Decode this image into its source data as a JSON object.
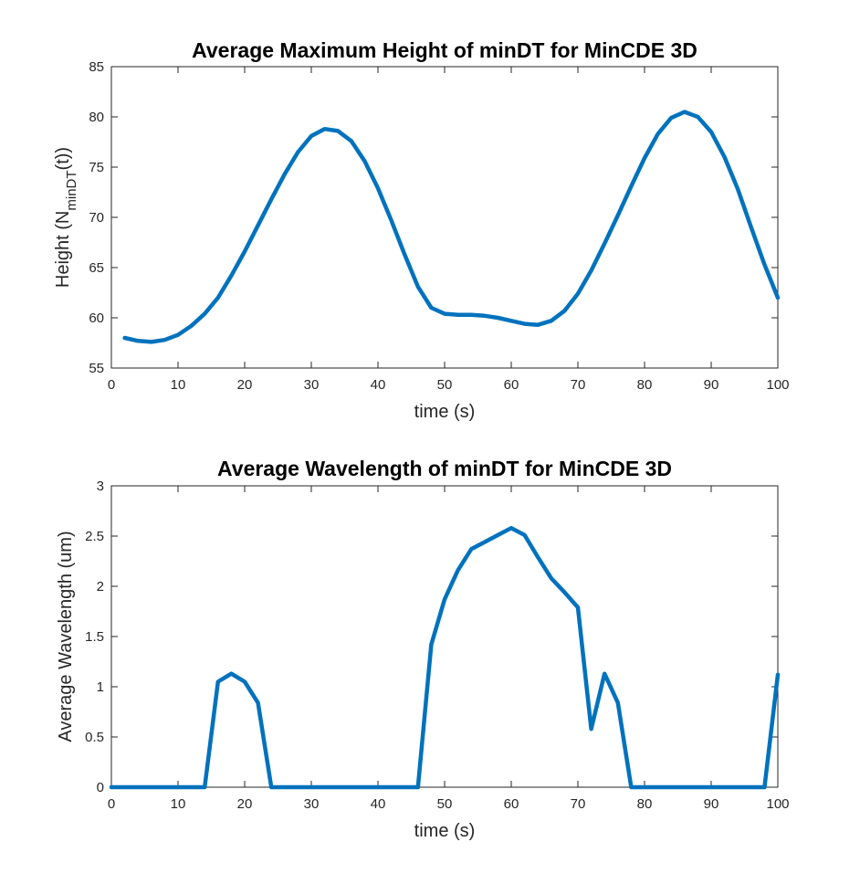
{
  "chart_data": [
    {
      "type": "line",
      "title": "Average Maximum Height of minDT for MinCDE 3D",
      "xlabel": "time (s)",
      "ylabel": {
        "main": "Height (N",
        "sub": "minDT",
        "tail": "(t))"
      },
      "xlim": [
        0,
        100
      ],
      "ylim": [
        55,
        85
      ],
      "xticks": [
        0,
        10,
        20,
        30,
        40,
        50,
        60,
        70,
        80,
        90,
        100
      ],
      "yticks": [
        55,
        60,
        65,
        70,
        75,
        80,
        85
      ],
      "xtick_labels": [
        "0",
        "10",
        "20",
        "30",
        "40",
        "50",
        "60",
        "70",
        "80",
        "90",
        "100"
      ],
      "ytick_labels": [
        "55",
        "60",
        "65",
        "70",
        "75",
        "80",
        "85"
      ],
      "grid": false,
      "color": "#0072BD",
      "x": [
        2,
        4,
        6,
        8,
        10,
        12,
        14,
        16,
        18,
        20,
        22,
        24,
        26,
        28,
        30,
        32,
        34,
        36,
        38,
        40,
        42,
        44,
        46,
        48,
        50,
        52,
        54,
        56,
        58,
        60,
        62,
        64,
        66,
        68,
        70,
        72,
        74,
        76,
        78,
        80,
        82,
        84,
        86,
        88,
        90,
        92,
        94,
        96,
        98,
        100
      ],
      "y": [
        58.0,
        57.7,
        57.6,
        57.8,
        58.3,
        59.2,
        60.4,
        62.0,
        64.2,
        66.6,
        69.2,
        71.8,
        74.3,
        76.5,
        78.1,
        78.8,
        78.6,
        77.6,
        75.6,
        72.9,
        69.7,
        66.3,
        63.1,
        61.0,
        60.4,
        60.3,
        60.3,
        60.2,
        60.0,
        59.7,
        59.4,
        59.3,
        59.7,
        60.7,
        62.4,
        64.7,
        67.4,
        70.2,
        73.1,
        75.9,
        78.3,
        79.9,
        80.5,
        80.0,
        78.5,
        76.0,
        72.8,
        69.0,
        65.3,
        62.0
      ]
    },
    {
      "type": "line",
      "title": "Average Wavelength of minDT for MinCDE 3D",
      "xlabel": "time (s)",
      "ylabel": {
        "main": "Average Wavelength (um)",
        "sub": "",
        "tail": ""
      },
      "xlim": [
        0,
        100
      ],
      "ylim": [
        0,
        3
      ],
      "xticks": [
        0,
        10,
        20,
        30,
        40,
        50,
        60,
        70,
        80,
        90,
        100
      ],
      "yticks": [
        0,
        0.5,
        1,
        1.5,
        2,
        2.5,
        3
      ],
      "xtick_labels": [
        "0",
        "10",
        "20",
        "30",
        "40",
        "50",
        "60",
        "70",
        "80",
        "90",
        "100"
      ],
      "ytick_labels": [
        "0",
        "0.5",
        "1",
        "1.5",
        "2",
        "2.5",
        "3"
      ],
      "grid": false,
      "color": "#0072BD",
      "x": [
        0,
        2,
        4,
        6,
        8,
        10,
        12,
        14,
        16,
        18,
        20,
        22,
        24,
        26,
        28,
        30,
        32,
        34,
        36,
        38,
        40,
        42,
        44,
        46,
        48,
        50,
        52,
        54,
        56,
        58,
        60,
        62,
        64,
        66,
        68,
        70,
        72,
        74,
        76,
        78,
        80,
        82,
        84,
        86,
        88,
        90,
        92,
        94,
        96,
        98,
        100
      ],
      "y": [
        0,
        0,
        0,
        0,
        0,
        0,
        0,
        0,
        1.05,
        1.13,
        1.05,
        0.84,
        0,
        0,
        0,
        0,
        0,
        0,
        0,
        0,
        0,
        0,
        0,
        0,
        1.42,
        1.87,
        2.16,
        2.37,
        2.44,
        2.51,
        2.58,
        2.51,
        2.29,
        2.08,
        1.94,
        1.79,
        0.58,
        1.13,
        0.84,
        0,
        0,
        0,
        0,
        0,
        0,
        0,
        0,
        0,
        0,
        0,
        1.12
      ]
    }
  ]
}
